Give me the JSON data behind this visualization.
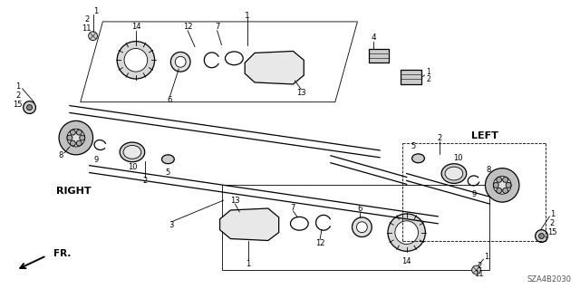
{
  "bg_color": "#ffffff",
  "diagram_id": "SZA4B2030",
  "fr_label": "FR.",
  "right_label": "RIGHT",
  "left_label": "LEFT",
  "fig_width": 6.4,
  "fig_height": 3.19,
  "dpi": 100
}
